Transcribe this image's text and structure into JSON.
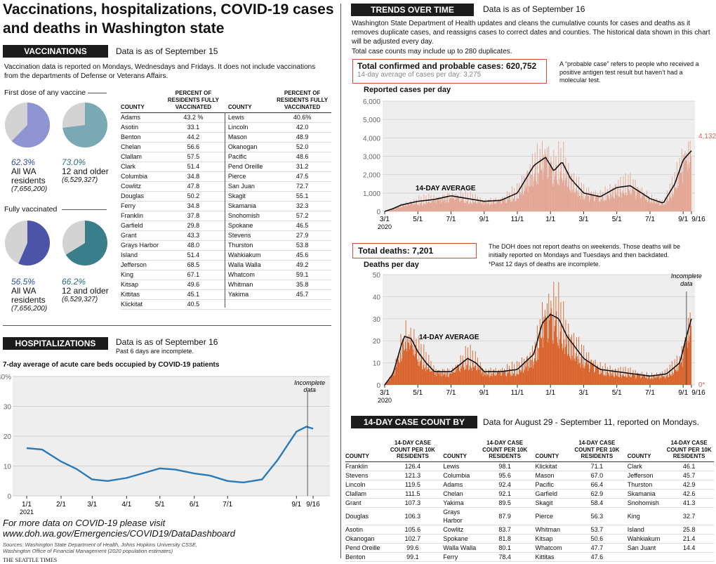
{
  "title": "Vaccinations, hospitalizations, COVID-19 cases and deaths in Washington state",
  "vacc": {
    "header": "VACCINATIONS",
    "asof": "Data is as of September 15",
    "note": "Vaccination data is reported on Mondays, Wednesdays and Fridays. It does not include vaccinations from the departments of Defense or Veterans Affairs.",
    "first_dose": "First dose of any vaccine",
    "fully": "Fully vaccinated",
    "pies": [
      {
        "pct": "62.3%",
        "l1": "All WA",
        "l2": "residents",
        "pop": "(7,656,200)",
        "value": 62.3,
        "color": "#8e95d2"
      },
      {
        "pct": "73.0%",
        "l1": "12 and older",
        "l2": "",
        "pop": "(6,529,327)",
        "value": 73.0,
        "color": "#7aa8b4"
      },
      {
        "pct": "56.5%",
        "l1": "All WA",
        "l2": "residents",
        "pop": "(7,656,200)",
        "value": 56.5,
        "color": "#4b54a8"
      },
      {
        "pct": "66.2%",
        "l1": "12 and older",
        "l2": "",
        "pop": "(6,529,327)",
        "value": 66.2,
        "color": "#3a7d8b"
      }
    ],
    "col_county": "COUNTY",
    "col_pct": "PERCENT OF RESIDENTS FULLY VACCINATED",
    "left": [
      [
        "Adams",
        "43.2 %"
      ],
      [
        "Asotin",
        "33.1"
      ],
      [
        "Benton",
        "44.2"
      ],
      [
        "Chelan",
        "56.6"
      ],
      [
        "Clallam",
        "57.5"
      ],
      [
        "Clark",
        "51.4"
      ],
      [
        "Columbia",
        "34.8"
      ],
      [
        "Cowlitz",
        "47.8"
      ],
      [
        "Douglas",
        "50.2"
      ],
      [
        "Ferry",
        "34.8"
      ],
      [
        "Franklin",
        "37.8"
      ],
      [
        "Garfield",
        "29.8"
      ],
      [
        "Grant",
        "43.3"
      ],
      [
        "Grays Harbor",
        "48.0"
      ],
      [
        "Island",
        "51.4"
      ],
      [
        "Jefferson",
        "68.5"
      ],
      [
        "King",
        "67.1"
      ],
      [
        "Kitsap",
        "49.6"
      ],
      [
        "Kittitas",
        "45.1"
      ],
      [
        "Klickitat",
        "40.5"
      ]
    ],
    "right": [
      [
        "Lewis",
        "40.6%"
      ],
      [
        "Lincoln",
        "42.0"
      ],
      [
        "Mason",
        "48.9"
      ],
      [
        "Okanogan",
        "52.0"
      ],
      [
        "Pacific",
        "48.6"
      ],
      [
        "Pend Oreille",
        "31.2"
      ],
      [
        "Pierce",
        "47.5"
      ],
      [
        "San Juan",
        "72.7"
      ],
      [
        "Skagit",
        "55.1"
      ],
      [
        "Skamania",
        "32.3"
      ],
      [
        "Snohomish",
        "57.2"
      ],
      [
        "Spokane",
        "46.5"
      ],
      [
        "Stevens",
        "27.9"
      ],
      [
        "Thurston",
        "53.8"
      ],
      [
        "Wahkiakum",
        "45.6"
      ],
      [
        "Walla Walla",
        "49.2"
      ],
      [
        "Whatcom",
        "59.1"
      ],
      [
        "Whitman",
        "35.8"
      ],
      [
        "Yakima",
        "45.7"
      ],
      [
        "",
        ""
      ]
    ]
  },
  "hosp": {
    "header": "HOSPITALIZATIONS",
    "asof": "Data is as of September 16",
    "note": "Past 6 days are incomplete.",
    "chart_title": "7-day average of acute care beds occupied by COVID-19 patients",
    "incomplete": "Incomplete data"
  },
  "footer": {
    "more": "For more data on COVID-19 please visit",
    "url": "www.doh.wa.gov/Emergencies/COVID19/DataDashboard",
    "sources1": "Sources: Washington State Department of Health, Johns Hopkins University CSSE,",
    "sources2": "Washington Office of Financial Management (2020 population estimates)",
    "credit": "THE SEATTLE TIMES"
  },
  "trends": {
    "header": "TRENDS OVER TIME",
    "asof": "Data is as of September 16",
    "note": "Washington State Department of Health updates and cleans the cumulative counts for cases and deaths as it removes duplicate cases, and reassigns cases to correct dates and counties. The historical data shown in this chart will be adjusted every day.",
    "note2": "Total case counts may include up to 280 duplicates.",
    "total_cases": "Total confirmed and probable cases: 620,752",
    "avg_cases": "14-day average of cases per day: 3,275",
    "probable": "A “probable case” refers to people who received a positive antigen test result but haven’t had a molecular test.",
    "cases_label": "Reported cases per day",
    "avg_label": "14-DAY AVERAGE",
    "last_cases": "4,132",
    "total_deaths": "Total deaths: 7,201",
    "deaths_note": "The DOH does not report deaths on weekends. Those deaths will be initially reported on Mondays and Tuesdays and then backdated.",
    "deaths_note2": "*Past 12 days of deaths are incomplete.",
    "deaths_label": "Deaths per day",
    "incomplete": "Incomplete data",
    "last_deaths": "0*"
  },
  "county": {
    "header": "14-DAY CASE COUNT BY COUNTY",
    "asof": "Data for August 29 - September 11, reported on Mondays.",
    "col_county": "COUNTY",
    "col_val": "14-DAY CASE COUNT PER 10K RESIDENTS",
    "cols": [
      [
        [
          "Franklin",
          "126.4"
        ],
        [
          "Stevens",
          "121.3"
        ],
        [
          "Lincoln",
          "119.5"
        ],
        [
          "Clallam",
          "111.5"
        ],
        [
          "Grant",
          "107.3"
        ],
        [
          "Douglas",
          "106.3"
        ],
        [
          "Asotin",
          "105.6"
        ],
        [
          "Okanogan",
          "102.7"
        ],
        [
          "Pend Oreille",
          "99.6"
        ],
        [
          "Benton",
          "99.1"
        ]
      ],
      [
        [
          "Lewis",
          "98.1"
        ],
        [
          "Columbia",
          "95.6"
        ],
        [
          "Adams",
          "92.4"
        ],
        [
          "Chelan",
          "92.1"
        ],
        [
          "Yakima",
          "89.5"
        ],
        [
          "Grays Harbor",
          "87.9"
        ],
        [
          "Cowlitz",
          "83.7"
        ],
        [
          "Spokane",
          "81.8"
        ],
        [
          "Walla Walla",
          "80.1"
        ],
        [
          "Ferry",
          "78.4"
        ]
      ],
      [
        [
          "Klickitat",
          "71.1"
        ],
        [
          "Mason",
          "67.0"
        ],
        [
          "Pacific",
          "66.4"
        ],
        [
          "Garfield",
          "62.9"
        ],
        [
          "Skagit",
          "58.4"
        ],
        [
          "Pierce",
          "56.3"
        ],
        [
          "Whitman",
          "53.7"
        ],
        [
          "Kitsap",
          "50.6"
        ],
        [
          "Whatcom",
          "47.7"
        ],
        [
          "Kittitas",
          "47.6"
        ]
      ],
      [
        [
          "Clark",
          "46.1"
        ],
        [
          "Jefferson",
          "45.7"
        ],
        [
          "Thurston",
          "42.9"
        ],
        [
          "Skamania",
          "42.6"
        ],
        [
          "Snohomish",
          "41.3"
        ],
        [
          "King",
          "32.7"
        ],
        [
          "Island",
          "25.8"
        ],
        [
          "Wahkiakum",
          "21.4"
        ],
        [
          "San Juant",
          "14.4"
        ],
        [
          "",
          ""
        ]
      ]
    ]
  },
  "chart_data": [
    {
      "type": "line",
      "title": "7-day average of acute care beds occupied by COVID-19 patients",
      "ylim": [
        0,
        40
      ],
      "yticks": [
        "0",
        "10",
        "20",
        "30",
        "40%"
      ],
      "x_ticks": [
        "1/1",
        "2/1",
        "3/1",
        "4/1",
        "5/1",
        "6/1",
        "7/1",
        "9/1",
        "9/16"
      ],
      "x_year": "2021",
      "series": [
        {
          "x": [
            "1/1",
            "1/15",
            "2/1",
            "2/15",
            "3/1",
            "3/15",
            "4/1",
            "4/15",
            "5/1",
            "5/15",
            "6/1",
            "6/15",
            "7/1",
            "7/15",
            "8/1",
            "8/15",
            "9/1",
            "9/10",
            "9/16"
          ],
          "values": [
            16,
            15.5,
            11.5,
            9,
            5.5,
            5,
            6,
            7.5,
            9.2,
            8.8,
            7.5,
            6.8,
            5,
            4.5,
            5.5,
            12,
            21.5,
            23.2,
            22.5
          ]
        }
      ]
    },
    {
      "type": "bar",
      "title": "Reported cases per day",
      "ylim": [
        0,
        6000
      ],
      "yticks": [
        "0",
        "1,000",
        "2,000",
        "3,000",
        "4,000",
        "5,000",
        "6,000"
      ],
      "x_ticks": [
        "3/1",
        "5/1",
        "7/1",
        "9/1",
        "11/1",
        "1/1",
        "3/1",
        "5/1",
        "7/1",
        "9/1",
        "9/16"
      ],
      "x_year": "2020",
      "avg_points": [
        [
          0,
          0
        ],
        [
          0.5,
          150
        ],
        [
          1,
          350
        ],
        [
          2,
          550
        ],
        [
          3,
          650
        ],
        [
          4,
          850
        ],
        [
          5,
          700
        ],
        [
          6,
          550
        ],
        [
          7,
          600
        ],
        [
          8,
          1000
        ],
        [
          9,
          2500
        ],
        [
          9.7,
          2950
        ],
        [
          10.2,
          2200
        ],
        [
          10.7,
          2700
        ],
        [
          11.2,
          1800
        ],
        [
          12,
          1000
        ],
        [
          13,
          800
        ],
        [
          14,
          1300
        ],
        [
          14.8,
          1400
        ],
        [
          15.5,
          1000
        ],
        [
          16,
          700
        ],
        [
          16.8,
          450
        ],
        [
          17.5,
          1500
        ],
        [
          18,
          2800
        ],
        [
          18.5,
          3300
        ],
        [
          18.5,
          3275
        ]
      ],
      "last_value": 4132
    },
    {
      "type": "bar",
      "title": "Deaths per day",
      "ylim": [
        0,
        50
      ],
      "yticks": [
        "0",
        "10",
        "20",
        "30",
        "40",
        "50"
      ],
      "x_ticks": [
        "3/1",
        "5/1",
        "7/1",
        "9/1",
        "11/1",
        "1/1",
        "3/1",
        "5/1",
        "7/1",
        "9/1",
        "9/16"
      ],
      "x_year": "2020",
      "avg_points": [
        [
          0,
          0
        ],
        [
          0.5,
          5
        ],
        [
          1,
          18
        ],
        [
          1.2,
          22
        ],
        [
          1.6,
          21
        ],
        [
          2,
          15
        ],
        [
          2.5,
          10
        ],
        [
          3,
          6
        ],
        [
          4,
          6
        ],
        [
          5,
          12
        ],
        [
          5.5,
          10
        ],
        [
          6,
          6
        ],
        [
          7,
          6
        ],
        [
          8,
          7
        ],
        [
          9,
          14
        ],
        [
          9.5,
          28
        ],
        [
          10,
          32
        ],
        [
          10.5,
          30
        ],
        [
          11,
          22
        ],
        [
          12,
          12
        ],
        [
          13,
          7
        ],
        [
          14,
          6
        ],
        [
          15,
          5
        ],
        [
          16,
          4
        ],
        [
          17,
          5
        ],
        [
          17.8,
          10
        ],
        [
          18.2,
          22
        ],
        [
          18.5,
          30
        ]
      ],
      "last_value": 0
    }
  ]
}
